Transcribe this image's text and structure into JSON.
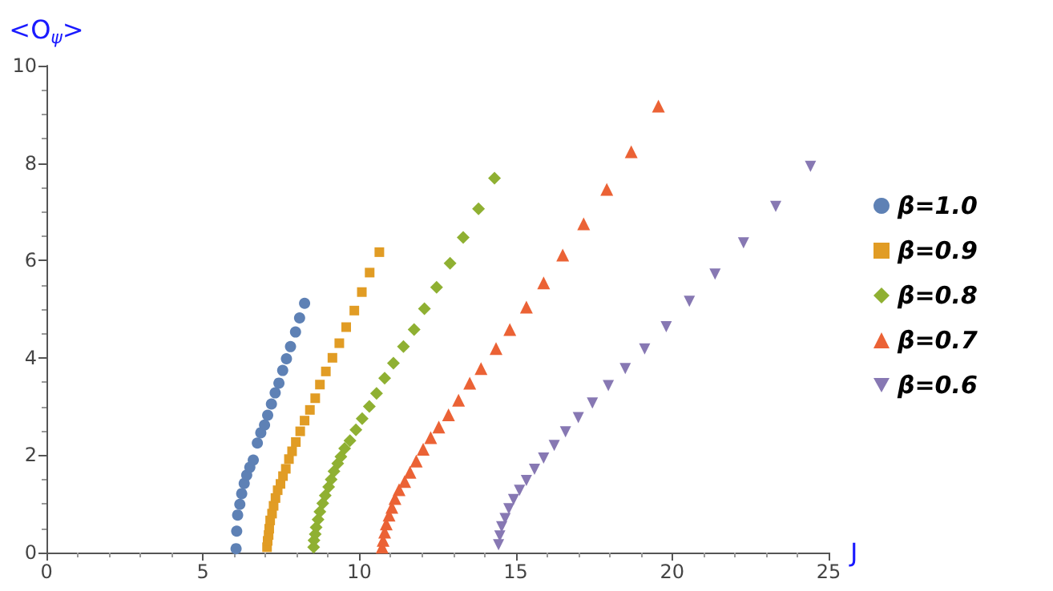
{
  "chart_data": {
    "type": "scatter",
    "xlabel": "J",
    "ylabel": "<O$_{ψ}$>",
    "xlim": [
      0,
      25
    ],
    "ylim": [
      0,
      10
    ],
    "xticks": [
      0,
      5,
      10,
      15,
      20,
      25
    ],
    "yticks": [
      0,
      2,
      4,
      6,
      8,
      10
    ],
    "grid": false,
    "legend": "right",
    "series": [
      {
        "name": "β=1.0",
        "color": "#5e81b5",
        "marker": "circle",
        "x": [
          6.06,
          6.08,
          6.11,
          6.18,
          6.24,
          6.32,
          6.4,
          6.5,
          6.61,
          6.74,
          6.85,
          6.97,
          7.07,
          7.19,
          7.31,
          7.43,
          7.55,
          7.67,
          7.8,
          7.96,
          8.09,
          8.25
        ],
        "values": [
          0.08,
          0.44,
          0.77,
          0.99,
          1.21,
          1.42,
          1.59,
          1.75,
          1.9,
          2.25,
          2.46,
          2.62,
          2.82,
          3.05,
          3.28,
          3.48,
          3.74,
          3.98,
          4.23,
          4.53,
          4.82,
          5.12
        ]
      },
      {
        "name": "β=0.9",
        "color": "#e19c24",
        "marker": "square",
        "x": [
          7.05,
          7.07,
          7.1,
          7.12,
          7.15,
          7.21,
          7.26,
          7.32,
          7.39,
          7.48,
          7.56,
          7.65,
          7.75,
          7.85,
          7.97,
          8.11,
          8.25,
          8.42,
          8.59,
          8.74,
          8.93,
          9.14,
          9.36,
          9.58,
          9.84,
          10.08,
          10.33,
          10.64
        ],
        "values": [
          0.11,
          0.24,
          0.36,
          0.49,
          0.66,
          0.8,
          0.96,
          1.12,
          1.28,
          1.41,
          1.57,
          1.72,
          1.92,
          2.08,
          2.27,
          2.49,
          2.71,
          2.93,
          3.17,
          3.45,
          3.72,
          4.0,
          4.3,
          4.63,
          4.97,
          5.35,
          5.75,
          6.17
        ]
      },
      {
        "name": "β=0.8",
        "color": "#8fb032",
        "marker": "diamond",
        "x": [
          8.54,
          8.55,
          8.59,
          8.62,
          8.68,
          8.74,
          8.83,
          8.91,
          9.02,
          9.1,
          9.19,
          9.31,
          9.41,
          9.53,
          9.7,
          9.89,
          10.09,
          10.32,
          10.55,
          10.81,
          11.09,
          11.41,
          11.75,
          12.08,
          12.47,
          12.9,
          13.32,
          13.81,
          14.32
        ],
        "values": [
          0.11,
          0.25,
          0.38,
          0.52,
          0.68,
          0.84,
          1.01,
          1.17,
          1.35,
          1.5,
          1.67,
          1.83,
          1.97,
          2.14,
          2.3,
          2.52,
          2.75,
          3.0,
          3.27,
          3.58,
          3.89,
          4.23,
          4.58,
          5.01,
          5.45,
          5.94,
          6.47,
          7.06,
          7.69
        ]
      },
      {
        "name": "β=0.7",
        "color": "#eb6235",
        "marker": "triangle",
        "x": [
          10.73,
          10.76,
          10.81,
          10.86,
          10.95,
          11.04,
          11.14,
          11.27,
          11.45,
          11.62,
          11.82,
          12.04,
          12.28,
          12.54,
          12.85,
          13.17,
          13.53,
          13.89,
          14.37,
          14.81,
          15.34,
          15.89,
          16.5,
          17.17,
          17.91,
          18.69,
          19.56
        ],
        "values": [
          0.11,
          0.25,
          0.42,
          0.59,
          0.77,
          0.93,
          1.11,
          1.29,
          1.46,
          1.65,
          1.88,
          2.12,
          2.36,
          2.58,
          2.83,
          3.13,
          3.48,
          3.78,
          4.19,
          4.58,
          5.04,
          5.54,
          6.11,
          6.75,
          7.46,
          8.23,
          9.17
        ]
      },
      {
        "name": "β=0.6",
        "color": "#8778b3",
        "marker": "triangle-down",
        "x": [
          14.45,
          14.49,
          14.55,
          14.66,
          14.78,
          14.93,
          15.12,
          15.34,
          15.6,
          15.89,
          16.23,
          16.59,
          17.0,
          17.45,
          17.96,
          18.5,
          19.12,
          19.81,
          20.55,
          21.37,
          22.28,
          23.31,
          24.42
        ],
        "values": [
          0.16,
          0.34,
          0.53,
          0.7,
          0.9,
          1.09,
          1.28,
          1.48,
          1.71,
          1.94,
          2.2,
          2.48,
          2.77,
          3.07,
          3.43,
          3.78,
          4.18,
          4.64,
          5.16,
          5.72,
          6.36,
          7.11,
          7.93
        ]
      }
    ]
  }
}
